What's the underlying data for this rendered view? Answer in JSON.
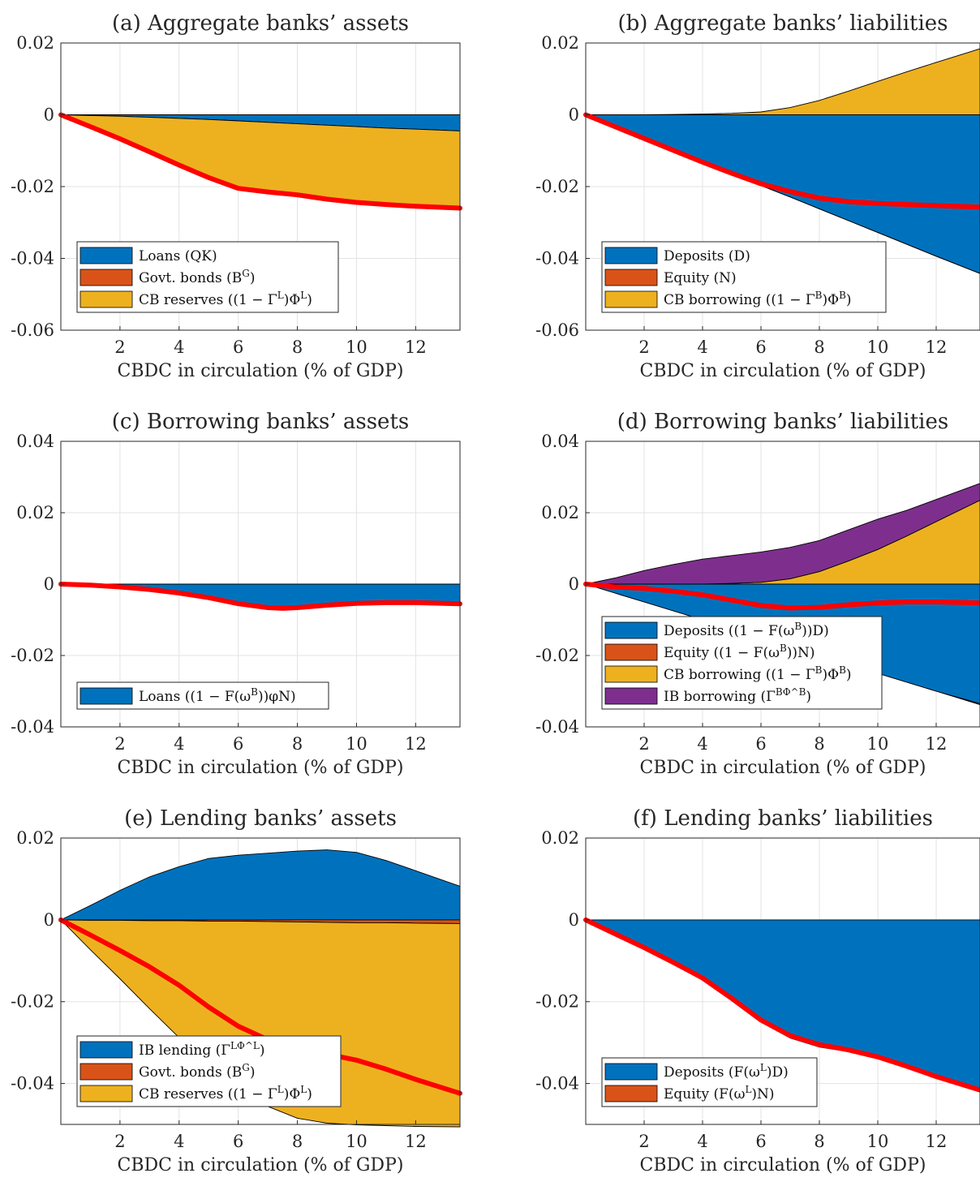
{
  "colors": {
    "blue": "#0072bd",
    "orange": "#d95319",
    "yellow": "#edb120",
    "purple": "#7e2f8e",
    "red": "#ff0000"
  },
  "chart_data": [
    {
      "type": "area",
      "title": "(a) Aggregate banks’ assets",
      "xlabel": "CBDC in circulation (% of GDP)",
      "ylabel": "",
      "xlim": [
        0,
        13.5
      ],
      "ylim": [
        -0.06,
        0.02
      ],
      "xticks": [
        2,
        4,
        6,
        8,
        10,
        12
      ],
      "yticks": [
        -0.06,
        -0.04,
        -0.02,
        0,
        0.02
      ],
      "ytick_labels": [
        "-0.06",
        "-0.04",
        "-0.02",
        "0",
        "0.02"
      ],
      "grid": true,
      "legend_position": "bottom-left",
      "x": [
        0,
        1,
        2,
        3,
        4,
        5,
        6,
        7,
        8,
        9,
        10,
        11,
        12,
        13.5
      ],
      "series": [
        {
          "name": "Loans (QK)",
          "color": "blue",
          "values": [
            0,
            -0.0002,
            -0.0004,
            -0.0007,
            -0.001,
            -0.0013,
            -0.0017,
            -0.0021,
            -0.0025,
            -0.0029,
            -0.0033,
            -0.0037,
            -0.004,
            -0.0045
          ]
        },
        {
          "name": "Govt. bonds (B^G)",
          "color": "orange",
          "values": [
            0,
            0,
            0,
            0,
            0,
            0,
            0,
            0,
            0,
            0,
            0,
            0,
            0,
            0
          ]
        },
        {
          "name": "CB reserves ((1 − Γ^L)Φ^L)",
          "color": "yellow",
          "values": [
            0,
            -0.0031,
            -0.0063,
            -0.0096,
            -0.013,
            -0.0162,
            -0.0188,
            -0.0194,
            -0.0198,
            -0.0206,
            -0.0211,
            -0.0213,
            -0.0215,
            -0.0215
          ]
        }
      ],
      "total": {
        "name": "",
        "color": "red",
        "values": [
          0,
          -0.0033,
          -0.0067,
          -0.0103,
          -0.014,
          -0.0175,
          -0.0205,
          -0.0215,
          -0.0223,
          -0.0235,
          -0.0244,
          -0.025,
          -0.0255,
          -0.026
        ]
      }
    },
    {
      "type": "area",
      "title": "(b) Aggregate banks’ liabilities",
      "xlabel": "CBDC in circulation (% of GDP)",
      "ylabel": "",
      "xlim": [
        0,
        13.5
      ],
      "ylim": [
        -0.06,
        0.02
      ],
      "xticks": [
        2,
        4,
        6,
        8,
        10,
        12
      ],
      "yticks": [
        -0.06,
        -0.04,
        -0.02,
        0,
        0.02
      ],
      "ytick_labels": [
        "-0.06",
        "-0.04",
        "-0.02",
        "0",
        "0.02"
      ],
      "grid": true,
      "legend_position": "bottom-left",
      "x": [
        0,
        1,
        2,
        3,
        4,
        5,
        6,
        7,
        8,
        9,
        10,
        11,
        12,
        13.5
      ],
      "series": [
        {
          "name": "Deposits (D)",
          "color": "blue",
          "values": [
            0,
            -0.0033,
            -0.0066,
            -0.0099,
            -0.0132,
            -0.0165,
            -0.0197,
            -0.0229,
            -0.0262,
            -0.0295,
            -0.0328,
            -0.0361,
            -0.0394,
            -0.0442
          ]
        },
        {
          "name": "Equity (N)",
          "color": "orange",
          "values": [
            0,
            0,
            0,
            0,
            0,
            0,
            0,
            0,
            0,
            0,
            0,
            0,
            0,
            0
          ]
        },
        {
          "name": "CB borrowing ((1 − Γ^B)Φ^B)",
          "color": "yellow",
          "values": [
            0,
            0,
            0,
            0.0001,
            0.0002,
            0.0004,
            0.0008,
            0.002,
            0.004,
            0.0066,
            0.0093,
            0.012,
            0.0146,
            0.0184
          ]
        }
      ],
      "total": {
        "name": "",
        "color": "red",
        "values": [
          0,
          -0.0033,
          -0.0066,
          -0.0099,
          -0.0132,
          -0.0163,
          -0.0192,
          -0.0214,
          -0.0232,
          -0.0242,
          -0.0247,
          -0.025,
          -0.0253,
          -0.0257
        ]
      }
    },
    {
      "type": "area",
      "title": "(c) Borrowing banks’ assets",
      "xlabel": "CBDC in circulation (% of GDP)",
      "ylabel": "",
      "xlim": [
        0,
        13.5
      ],
      "ylim": [
        -0.04,
        0.04
      ],
      "xticks": [
        2,
        4,
        6,
        8,
        10,
        12
      ],
      "yticks": [
        -0.04,
        -0.02,
        0,
        0.02,
        0.04
      ],
      "ytick_labels": [
        "-0.04",
        "-0.02",
        "0",
        "0.02",
        "0.04"
      ],
      "grid": true,
      "legend_position": "bottom-left",
      "x": [
        0,
        1,
        2,
        3,
        4,
        5,
        6,
        7,
        7.5,
        8,
        9,
        10,
        11,
        12,
        13.5
      ],
      "series": [
        {
          "name": "Loans ((1 − F(ω^B))φN)",
          "color": "blue",
          "values": [
            0,
            -0.0003,
            -0.0008,
            -0.0015,
            -0.0025,
            -0.0038,
            -0.0055,
            -0.0066,
            -0.0068,
            -0.0066,
            -0.0059,
            -0.0054,
            -0.0052,
            -0.0052,
            -0.0055
          ]
        }
      ],
      "total": {
        "name": "",
        "color": "red",
        "values": [
          0,
          -0.0003,
          -0.0008,
          -0.0015,
          -0.0025,
          -0.0038,
          -0.0055,
          -0.0066,
          -0.0068,
          -0.0066,
          -0.0059,
          -0.0054,
          -0.0052,
          -0.0052,
          -0.0055
        ]
      }
    },
    {
      "type": "area",
      "title": "(d) Borrowing banks’ liabilities",
      "xlabel": "CBDC in circulation (% of GDP)",
      "ylabel": "",
      "xlim": [
        0,
        13.5
      ],
      "ylim": [
        -0.04,
        0.04
      ],
      "xticks": [
        2,
        4,
        6,
        8,
        10,
        12
      ],
      "yticks": [
        -0.04,
        -0.02,
        0,
        0.02,
        0.04
      ],
      "ytick_labels": [
        "-0.04",
        "-0.02",
        "0",
        "0.02",
        "0.04"
      ],
      "grid": true,
      "legend_position": "bottom-left",
      "x": [
        0,
        1,
        2,
        3,
        4,
        5,
        6,
        7,
        8,
        9,
        10,
        11,
        12,
        13.5
      ],
      "series": [
        {
          "name": "Deposits ((1 − F(ω^B))D)",
          "color": "blue",
          "values": [
            0,
            -0.0025,
            -0.005,
            -0.0075,
            -0.01,
            -0.0125,
            -0.015,
            -0.0175,
            -0.02,
            -0.0225,
            -0.025,
            -0.0275,
            -0.03,
            -0.0335
          ]
        },
        {
          "name": "Equity ((1 − F(ω^B))N)",
          "color": "orange",
          "values": [
            0,
            0,
            0,
            0,
            0,
            0,
            0,
            0,
            0,
            0,
            0,
            0,
            0,
            -0.0003
          ]
        },
        {
          "name": "CB borrowing ((1 − Γ^B)Φ^B)",
          "color": "yellow",
          "values": [
            0,
            0,
            0,
            0,
            0,
            0.0002,
            0.0005,
            0.0015,
            0.0035,
            0.0065,
            0.0097,
            0.0135,
            0.0175,
            0.0235
          ]
        },
        {
          "name": "IB borrowing (Γ^BΦ^B)",
          "color": "purple",
          "values": [
            0,
            0.0017,
            0.0038,
            0.0055,
            0.007,
            0.0078,
            0.0085,
            0.0088,
            0.0087,
            0.0087,
            0.0085,
            0.0072,
            0.0062,
            0.0047
          ]
        }
      ],
      "total": {
        "name": "",
        "color": "red",
        "values": [
          0,
          -0.0008,
          -0.0012,
          -0.002,
          -0.003,
          -0.0045,
          -0.006,
          -0.0067,
          -0.0065,
          -0.0058,
          -0.0053,
          -0.005,
          -0.005,
          -0.0053
        ]
      }
    },
    {
      "type": "area",
      "title": "(e) Lending banks’ assets",
      "xlabel": "CBDC in circulation (% of GDP)",
      "ylabel": "",
      "xlim": [
        0,
        13.5
      ],
      "ylim": [
        -0.05,
        0.02
      ],
      "xticks": [
        2,
        4,
        6,
        8,
        10,
        12
      ],
      "yticks": [
        -0.04,
        -0.02,
        0,
        0.02
      ],
      "ytick_labels": [
        "-0.04",
        "-0.02",
        "0",
        "0.02"
      ],
      "grid": true,
      "legend_position": "bottom-left",
      "x": [
        0,
        1,
        2,
        3,
        4,
        5,
        6,
        7,
        8,
        9,
        10,
        11,
        12,
        13.5
      ],
      "series": [
        {
          "name": "IB lending (Γ^LΦ^L)",
          "color": "blue",
          "values": [
            0,
            0.0035,
            0.0072,
            0.0105,
            0.013,
            0.015,
            0.0158,
            0.0163,
            0.0168,
            0.0171,
            0.0165,
            0.0145,
            0.012,
            0.0082
          ]
        },
        {
          "name": "Govt. bonds (B^G)",
          "color": "orange",
          "values": [
            0,
            -0.0001,
            -0.0001,
            -0.0002,
            -0.0002,
            -0.0003,
            -0.0003,
            -0.0004,
            -0.0005,
            -0.0006,
            -0.0007,
            -0.0007,
            -0.0008,
            -0.0009
          ]
        },
        {
          "name": "CB reserves ((1 − Γ^L)Φ^L)",
          "color": "yellow",
          "values": [
            0,
            -0.0072,
            -0.0143,
            -0.0215,
            -0.0286,
            -0.0357,
            -0.0412,
            -0.0452,
            -0.048,
            -0.0491,
            -0.0494,
            -0.0496,
            -0.0497,
            -0.0497
          ]
        }
      ],
      "total": {
        "name": "",
        "color": "red",
        "values": [
          0,
          -0.0037,
          -0.0075,
          -0.0115,
          -0.016,
          -0.0213,
          -0.026,
          -0.0293,
          -0.0312,
          -0.0328,
          -0.0343,
          -0.0365,
          -0.039,
          -0.0424
        ]
      }
    },
    {
      "type": "area",
      "title": "(f) Lending banks’ liabilities",
      "xlabel": "CBDC in circulation (% of GDP)",
      "ylabel": "",
      "xlim": [
        0,
        13.5
      ],
      "ylim": [
        -0.05,
        0.02
      ],
      "xticks": [
        2,
        4,
        6,
        8,
        10,
        12
      ],
      "yticks": [
        -0.04,
        -0.02,
        0,
        0.02
      ],
      "ytick_labels": [
        "-0.04",
        "-0.02",
        "0",
        "0.02"
      ],
      "grid": true,
      "legend_position": "bottom-left",
      "x": [
        0,
        1,
        2,
        3,
        4,
        5,
        6,
        7,
        8,
        9,
        10,
        11,
        12,
        13.5
      ],
      "series": [
        {
          "name": "Deposits (F(ω^L)D)",
          "color": "blue",
          "values": [
            0,
            -0.0034,
            -0.0068,
            -0.0104,
            -0.0142,
            -0.0192,
            -0.0245,
            -0.0283,
            -0.0305,
            -0.0318,
            -0.0335,
            -0.0358,
            -0.0383,
            -0.0416
          ]
        },
        {
          "name": "Equity (F(ω^L)N)",
          "color": "orange",
          "values": [
            0,
            0,
            0,
            -0.0001,
            -0.0002,
            -0.0003,
            -0.0005,
            -0.0006,
            -0.0006,
            -0.0004,
            -0.0002,
            -0.0001,
            0,
            0
          ]
        }
      ],
      "total": {
        "name": "",
        "color": "red",
        "values": [
          0,
          -0.0034,
          -0.0068,
          -0.0104,
          -0.0142,
          -0.0192,
          -0.0245,
          -0.0283,
          -0.0305,
          -0.0318,
          -0.0335,
          -0.0358,
          -0.0383,
          -0.0416
        ]
      }
    }
  ]
}
